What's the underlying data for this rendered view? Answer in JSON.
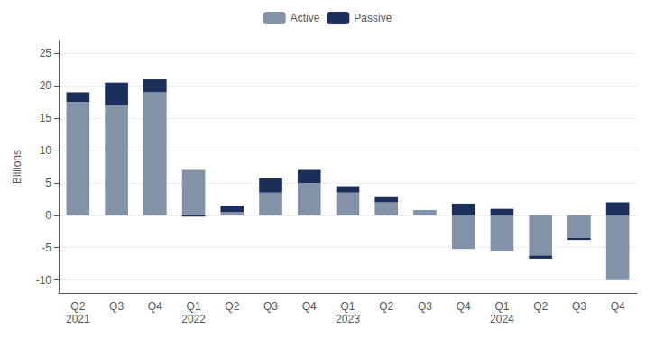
{
  "chart_data": {
    "type": "bar",
    "stacked": true,
    "categories": [
      "Q2\n2021",
      "Q3",
      "Q4",
      "Q1\n2022",
      "Q2",
      "Q3",
      "Q4",
      "Q1\n2023",
      "Q2",
      "Q3",
      "Q4",
      "Q1\n2024",
      "Q2",
      "Q3",
      "Q4"
    ],
    "series": [
      {
        "name": "Active",
        "color": "#8393a7",
        "values": [
          17.5,
          17.0,
          19.0,
          7.0,
          0.5,
          3.5,
          5.0,
          3.5,
          2.0,
          0.8,
          -5.2,
          -5.6,
          -6.2,
          -3.5,
          -10.0
        ]
      },
      {
        "name": "Passive",
        "color": "#1b2f5b",
        "values": [
          1.5,
          3.5,
          2.0,
          -0.2,
          1.0,
          2.2,
          2.0,
          1.0,
          0.8,
          0.0,
          1.8,
          1.0,
          -0.5,
          -0.3,
          2.0
        ]
      }
    ],
    "ylabel": "Billions",
    "ylim": [
      -12,
      27
    ],
    "yticks": [
      -10,
      -5,
      0,
      5,
      10,
      15,
      20,
      25
    ],
    "grid": true,
    "legend": "top"
  }
}
